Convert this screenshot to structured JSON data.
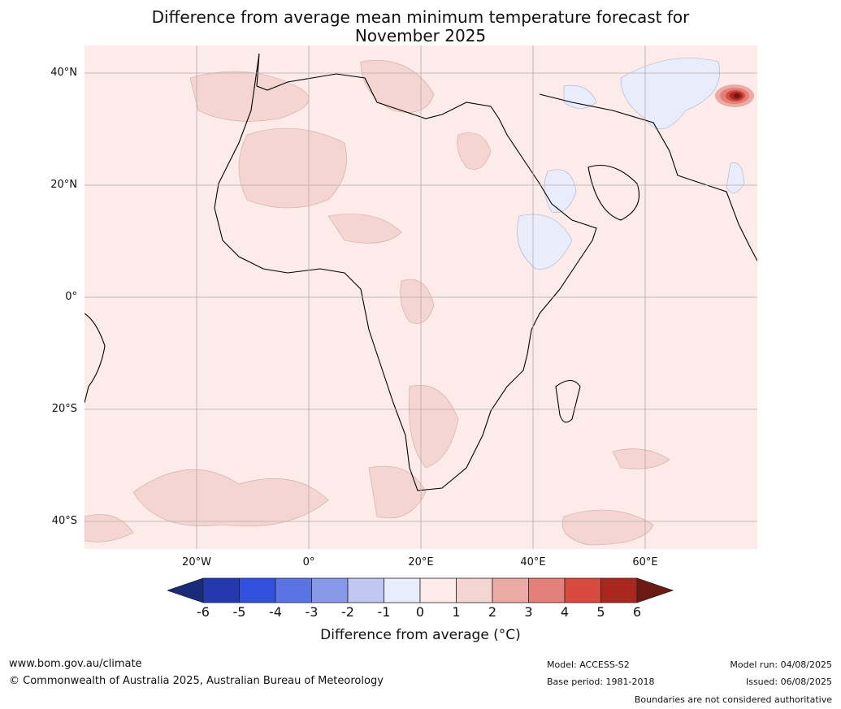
{
  "title": {
    "line1": "Difference from average mean minimum temperature forecast for",
    "line2": "November 2025"
  },
  "map": {
    "lat_labels": [
      "40°N",
      "20°N",
      "0°",
      "20°S",
      "40°S"
    ],
    "lon_labels": [
      "20°W",
      "0°",
      "20°E",
      "40°E",
      "60°E"
    ],
    "background_anomaly_class": "0 to 1",
    "regions": [
      {
        "name": "Tibetan Plateau hot spot",
        "class": "above 6"
      },
      {
        "name": "Sahara / North Africa patches",
        "class": "1 to 2"
      },
      {
        "name": "Mediterranean / Turkey",
        "class": "1 to 2"
      },
      {
        "name": "Central Asia / Iran",
        "class": "-1 to 0"
      },
      {
        "name": "Horn of Africa / Ethiopia",
        "class": "-1 to 0"
      },
      {
        "name": "Southern Ocean bands",
        "class": "1 to 2"
      },
      {
        "name": "Namibia / Kalahari",
        "class": "1 to 2"
      }
    ]
  },
  "colorbar": {
    "ticks": [
      "-6",
      "-5",
      "-4",
      "-3",
      "-2",
      "-1",
      "0",
      "1",
      "2",
      "3",
      "4",
      "5",
      "6"
    ],
    "colors": {
      "below_-6": "#1a2a7a",
      "-6_-5": "#2439ad",
      "-5_-4": "#3150e0",
      "-4_-3": "#5a74e3",
      "-3_-2": "#8798e8",
      "-2_-1": "#c0c8f2",
      "-1_0": "#e9ecfb",
      "0_1": "#fcebe8",
      "1_2": "#f4d5d1",
      "2_3": "#ebaaa3",
      "3_4": "#e4807a",
      "4_5": "#d94a3e",
      "5_6": "#a8271f",
      "above_6": "#6b1a14"
    },
    "label": "Difference from average (°C)"
  },
  "footer": {
    "website": "www.bom.gov.au/climate",
    "copyright": "© Commonwealth of Australia 2025, Australian Bureau of Meteorology",
    "model": "Model: ACCESS-S2",
    "base_period": "Base period: 1981-2018",
    "model_run": "Model run: 04/08/2025",
    "issued": "Issued: 06/08/2025",
    "disclaimer": "Boundaries are not considered authoritative"
  }
}
